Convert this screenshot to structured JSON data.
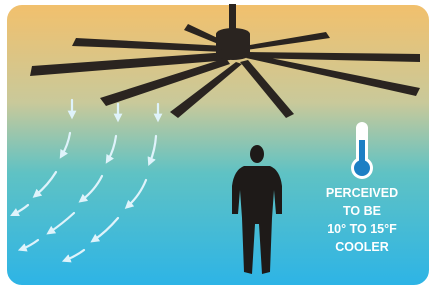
{
  "caption": {
    "lines": [
      "PERCEIVED",
      "TO BE",
      "10° TO 15°F",
      "COOLER"
    ]
  }
}
